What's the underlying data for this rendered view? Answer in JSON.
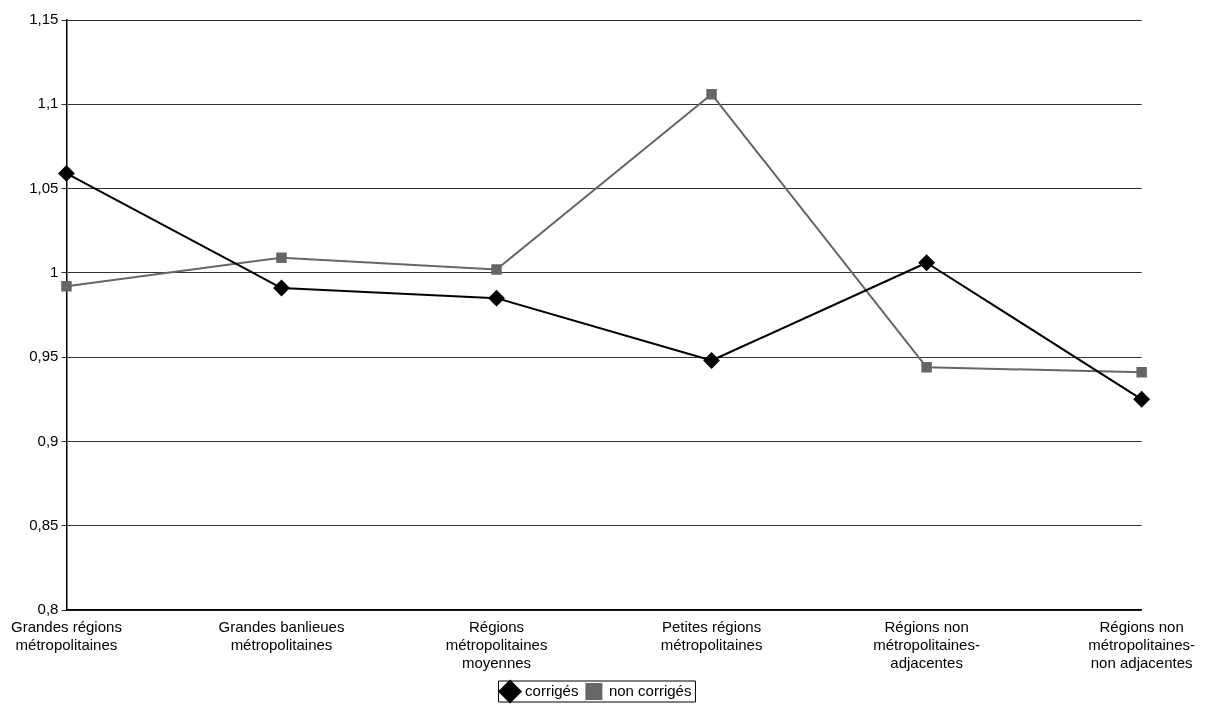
{
  "chart_data": {
    "type": "line",
    "categories": [
      "Grandes régions métropolitaines",
      "Grandes banlieues métropolitaines",
      "Régions métropolitaines moyennes",
      "Petites régions métropolitaines",
      "Régions non métropolitaines-adjacentes",
      "Régions non métropolitaines-non adjacentes"
    ],
    "series": [
      {
        "name": "corrigés",
        "color": "#000000",
        "marker": "diamond",
        "values": [
          1.059,
          0.991,
          0.985,
          0.948,
          1.006,
          0.925
        ]
      },
      {
        "name": "non corrigés",
        "color": "#666666",
        "marker": "square",
        "values": [
          0.992,
          1.009,
          1.002,
          1.106,
          0.944,
          0.941
        ]
      }
    ],
    "ylim": [
      0.8,
      1.15
    ],
    "yticks": [
      {
        "value": 0.8,
        "label": "0,8"
      },
      {
        "value": 0.85,
        "label": "0,85"
      },
      {
        "value": 0.9,
        "label": "0,9"
      },
      {
        "value": 0.95,
        "label": "0,95"
      },
      {
        "value": 1,
        "label": "1"
      },
      {
        "value": 1.05,
        "label": "1,05"
      },
      {
        "value": 1.1,
        "label": "1,1"
      },
      {
        "value": 1.15,
        "label": "1,15"
      }
    ],
    "grid": "y",
    "legend": "bottom",
    "line_style": "solid"
  }
}
